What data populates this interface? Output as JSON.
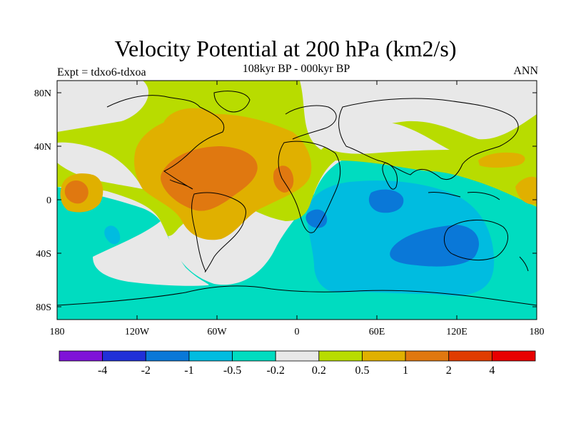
{
  "header": {
    "title": "Velocity Potential at 200 hPa (km2/s)",
    "subtitle": "108kyr BP - 000kyr BP",
    "left_label": "Expt = tdxo6-tdxoa",
    "right_label": "ANN"
  },
  "map": {
    "projection": "cylindrical equidistant",
    "x_ticks": [
      "180",
      "120W",
      "60W",
      "0",
      "60E",
      "120E",
      "180"
    ],
    "y_ticks": [
      "80N",
      "40N",
      "0",
      "40S",
      "80S"
    ]
  },
  "colorbar": {
    "colors": [
      "#7f12d8",
      "#2030d8",
      "#0a78d8",
      "#00bce0",
      "#00dcc0",
      "#e8e8e8",
      "#b8dc00",
      "#e0b000",
      "#e07810",
      "#e03c00",
      "#e80000"
    ],
    "labels": [
      "-4",
      "-2",
      "-1",
      "-0.5",
      "-0.2",
      "0.2",
      "0.5",
      "1",
      "2",
      "4"
    ]
  },
  "colors": {
    "neg_strong": "#0a78d8",
    "neg_moderate": "#00bce0",
    "neg_weak": "#00dcc0",
    "neutral": "#e8e8e8",
    "pos_weak": "#b8dc00",
    "pos_moderate": "#e0b000",
    "pos_strong": "#e07810"
  }
}
